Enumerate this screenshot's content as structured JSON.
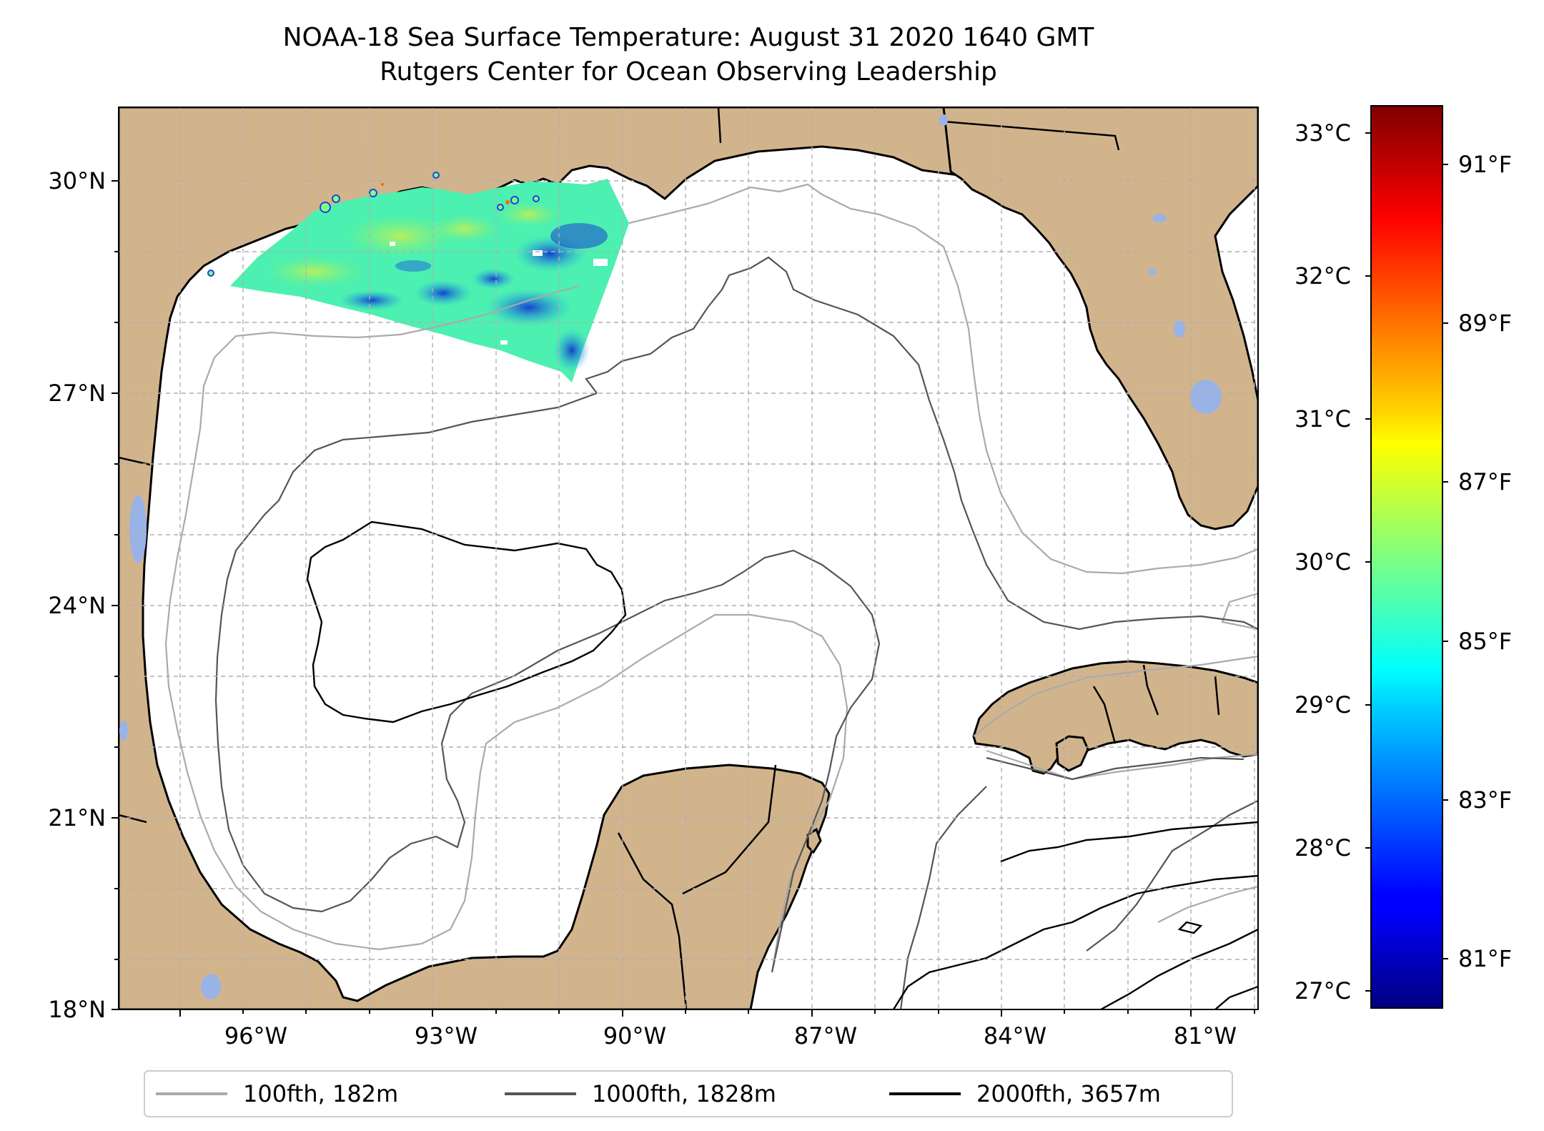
{
  "title_line1": "NOAA-18 Sea Surface Temperature: August 31 2020 1640 GMT",
  "title_line2": "Rutgers Center for Ocean Observing Leadership",
  "lat_labels": [
    "30°N",
    "27°N",
    "24°N",
    "21°N",
    "18°N"
  ],
  "lon_labels": [
    "96°W",
    "93°W",
    "90°W",
    "87°W",
    "84°W",
    "81°W"
  ],
  "colorbar": {
    "celsius_labels": [
      "33°C",
      "32°C",
      "31°C",
      "30°C",
      "29°C",
      "28°C",
      "27°C"
    ],
    "fahrenheit_labels": [
      "91°F",
      "89°F",
      "87°F",
      "85°F",
      "83°F",
      "81°F"
    ],
    "colormap": "jet",
    "range_c": [
      26.9,
      33.2
    ]
  },
  "legend": [
    {
      "label": "100fth, 182m",
      "color": "#aaaaaa"
    },
    {
      "label": "1000fth, 1828m",
      "color": "#555555"
    },
    {
      "label": "2000fth, 3657m",
      "color": "#000000"
    }
  ],
  "colors": {
    "land": "#d2b48c",
    "lake": "#99b3e6",
    "ocean": "#ffffff"
  }
}
